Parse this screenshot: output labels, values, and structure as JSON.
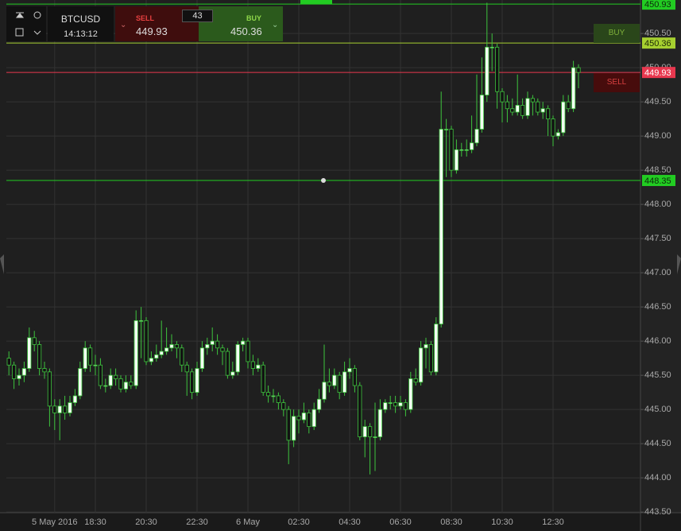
{
  "chart_data": {
    "type": "candlestick",
    "categories": [
      null,
      null,
      null,
      null,
      null,
      null,
      null,
      null,
      null,
      "5 May 2016",
      null,
      null,
      null,
      null,
      null,
      null,
      null,
      "18:30",
      null,
      null,
      null,
      null,
      null,
      null,
      null,
      null,
      null,
      "20:30",
      null,
      null,
      null,
      null,
      null,
      null,
      null,
      null,
      null,
      "22:30",
      null,
      null,
      null,
      null,
      null,
      null,
      null,
      null,
      null,
      "6 May",
      null,
      null,
      null,
      null,
      null,
      null,
      null,
      null,
      null,
      "02:30",
      null,
      null,
      null,
      null,
      null,
      null,
      null,
      null,
      null,
      "04:30",
      null,
      null,
      null,
      null,
      null,
      null,
      null,
      null,
      null,
      "06:30",
      null,
      null,
      null,
      null,
      null,
      null,
      null,
      null,
      null,
      "08:30",
      null,
      null,
      null,
      null,
      null,
      null,
      null,
      null,
      null,
      "10:30",
      null,
      null,
      null,
      null,
      null,
      null,
      null,
      null,
      null,
      "12:30",
      null,
      null,
      null,
      null,
      null
    ],
    "open": [
      445.75,
      445.65,
      445.45,
      445.5,
      445.6,
      446.05,
      445.95,
      445.6,
      445.55,
      445.05,
      444.95,
      445.05,
      444.95,
      445.1,
      445.2,
      445.6,
      445.9,
      445.65,
      445.65,
      445.35,
      445.35,
      445.5,
      445.45,
      445.3,
      445.4,
      445.35,
      446.3,
      446.3,
      445.7,
      445.75,
      445.8,
      445.85,
      445.9,
      445.95,
      445.9,
      445.65,
      445.55,
      445.25,
      445.6,
      445.9,
      445.95,
      446.0,
      445.9,
      445.85,
      445.5,
      445.55,
      445.95,
      446.0,
      445.7,
      445.6,
      445.65,
      445.25,
      445.2,
      445.2,
      445.1,
      445.0,
      444.55,
      444.9,
      444.85,
      444.95,
      444.75,
      445.0,
      445.15,
      445.4,
      445.35,
      445.5,
      445.25,
      445.55,
      445.6,
      445.35,
      444.6,
      444.75,
      444.6,
      444.6,
      445.0,
      445.1,
      445.1,
      445.05,
      445.1,
      445.0,
      445.45,
      445.4,
      445.9,
      445.95,
      445.55,
      446.25,
      449.1,
      449.1,
      448.5,
      448.8,
      448.8,
      448.8,
      448.9,
      449.1,
      449.6,
      450.3,
      450.3,
      449.65,
      449.5,
      449.4,
      449.35,
      449.45,
      449.3,
      449.55,
      449.5,
      449.35,
      449.4,
      449.25,
      449.0,
      449.05,
      449.5,
      449.4,
      450.0
    ],
    "high": [
      445.85,
      445.7,
      445.6,
      445.7,
      446.2,
      446.15,
      446.0,
      445.7,
      445.6,
      445.15,
      445.15,
      445.2,
      445.2,
      445.3,
      445.7,
      446.0,
      445.95,
      445.8,
      445.75,
      445.45,
      445.6,
      445.6,
      445.5,
      445.5,
      445.5,
      446.45,
      446.5,
      446.35,
      445.85,
      445.95,
      446.3,
      446.2,
      446.1,
      446.0,
      445.95,
      445.7,
      445.6,
      445.7,
      446.0,
      446.05,
      446.2,
      446.1,
      445.95,
      445.9,
      445.7,
      446.0,
      446.05,
      446.05,
      445.8,
      445.75,
      445.7,
      445.35,
      445.3,
      445.25,
      445.15,
      445.05,
      445.0,
      445.0,
      445.1,
      445.0,
      445.1,
      445.3,
      445.95,
      445.6,
      445.6,
      445.55,
      445.7,
      445.75,
      445.65,
      445.4,
      444.85,
      444.8,
      445.1,
      445.15,
      445.15,
      445.2,
      445.2,
      445.2,
      445.15,
      445.55,
      445.6,
      446.0,
      446.05,
      446.0,
      446.35,
      449.65,
      449.25,
      449.15,
      448.95,
      448.9,
      448.95,
      449.3,
      449.9,
      450.15,
      450.95,
      450.5,
      450.35,
      449.7,
      449.6,
      449.55,
      449.9,
      449.55,
      449.65,
      449.6,
      449.55,
      449.5,
      449.45,
      449.3,
      449.1,
      449.6,
      449.6,
      450.1,
      450.05
    ],
    "low": [
      445.5,
      445.3,
      445.35,
      445.4,
      445.55,
      445.85,
      445.5,
      445.45,
      444.75,
      444.7,
      444.55,
      444.85,
      444.9,
      445.05,
      445.15,
      445.55,
      445.55,
      445.5,
      445.3,
      445.25,
      445.3,
      445.35,
      445.25,
      445.25,
      445.3,
      445.3,
      445.75,
      445.65,
      445.65,
      445.7,
      445.75,
      445.8,
      445.85,
      445.75,
      445.55,
      445.2,
      445.15,
      445.2,
      445.55,
      445.8,
      445.85,
      445.8,
      445.65,
      445.45,
      445.45,
      445.5,
      445.85,
      445.6,
      445.5,
      445.55,
      445.2,
      445.1,
      445.1,
      445.0,
      444.9,
      444.2,
      444.45,
      444.65,
      444.8,
      444.65,
      444.7,
      444.95,
      445.1,
      445.25,
      445.3,
      445.15,
      445.2,
      445.45,
      445.25,
      444.55,
      444.3,
      444.05,
      444.1,
      444.55,
      444.95,
      445.0,
      444.95,
      445.0,
      444.9,
      444.95,
      445.35,
      445.35,
      445.6,
      445.5,
      445.5,
      446.2,
      448.4,
      448.4,
      448.45,
      448.7,
      448.7,
      448.75,
      448.85,
      449.05,
      449.5,
      449.95,
      449.4,
      449.2,
      449.2,
      449.3,
      449.3,
      449.25,
      449.25,
      449.3,
      449.3,
      449.25,
      449.0,
      448.85,
      448.95,
      449.0,
      449.35,
      449.35,
      449.7
    ],
    "close": [
      445.65,
      445.45,
      445.5,
      445.6,
      446.05,
      445.95,
      445.6,
      445.55,
      445.05,
      444.95,
      445.05,
      444.95,
      445.1,
      445.2,
      445.6,
      445.9,
      445.65,
      445.65,
      445.35,
      445.35,
      445.5,
      445.45,
      445.3,
      445.4,
      445.35,
      446.3,
      446.3,
      445.7,
      445.75,
      445.8,
      445.85,
      445.9,
      445.95,
      445.9,
      445.65,
      445.55,
      445.25,
      445.6,
      445.9,
      445.95,
      446.0,
      445.9,
      445.85,
      445.5,
      445.55,
      445.95,
      446.0,
      445.7,
      445.6,
      445.65,
      445.25,
      445.2,
      445.2,
      445.1,
      445.0,
      444.55,
      444.9,
      444.85,
      444.95,
      444.75,
      445.0,
      445.15,
      445.4,
      445.35,
      445.5,
      445.25,
      445.55,
      445.6,
      445.35,
      444.6,
      444.75,
      444.6,
      444.6,
      445.0,
      445.1,
      445.1,
      445.05,
      445.1,
      445.0,
      445.45,
      445.4,
      445.9,
      445.95,
      445.55,
      446.25,
      449.1,
      449.1,
      448.5,
      448.8,
      448.8,
      448.8,
      448.9,
      449.1,
      449.6,
      450.3,
      450.3,
      449.65,
      449.5,
      449.4,
      449.35,
      449.45,
      449.3,
      449.55,
      449.5,
      449.35,
      449.4,
      449.25,
      449.0,
      449.05,
      449.5,
      449.4,
      450.0,
      449.93
    ],
    "up_color": "#f2fff2",
    "down_color": "#121212",
    "wick_color": "#3ec43e",
    "ylim": [
      443.49,
      450.99
    ],
    "yticks": [
      {
        "value": 443.5,
        "label": "443.50"
      },
      {
        "value": 444,
        "label": "444.00"
      },
      {
        "value": 444.5,
        "label": "444.50"
      },
      {
        "value": 445,
        "label": "445.00"
      },
      {
        "value": 445.5,
        "label": "445.50"
      },
      {
        "value": 446,
        "label": "446.00"
      },
      {
        "value": 446.5,
        "label": "446.50"
      },
      {
        "value": 447,
        "label": "447.00"
      },
      {
        "value": 447.5,
        "label": "447.50"
      },
      {
        "value": 448,
        "label": "448.00"
      },
      {
        "value": 448.5,
        "label": "448.50"
      },
      {
        "value": 449,
        "label": "449.00"
      },
      {
        "value": 449.5,
        "label": "449.50"
      },
      {
        "value": 450,
        "label": "450.00"
      },
      {
        "value": 450.5,
        "label": "450.50"
      }
    ],
    "grid": true,
    "price_lines": [
      {
        "value": 450.93,
        "color": "#22cc22",
        "label_text_color": "#0b2a0b"
      },
      {
        "value": 450.36,
        "color": "#a6d030",
        "label_text_color": "#1e2a05"
      },
      {
        "value": 449.93,
        "color": "#e8384f",
        "label_text_color": "#ffffff"
      },
      {
        "value": 448.35,
        "color": "#22cc22",
        "label_text_color": "#0b2a0b"
      }
    ]
  },
  "toolbar": {
    "symbol": "BTCUSD",
    "time": "14:13:12",
    "sell_label": "SELL",
    "sell_price": "449.93",
    "quantity": "43",
    "buy_label": "BUY",
    "buy_price": "450.36"
  },
  "side_buttons": {
    "buy": "BUY",
    "sell": "SELL"
  }
}
